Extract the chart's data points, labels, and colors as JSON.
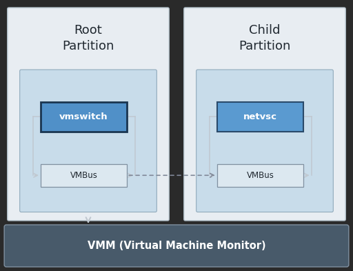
{
  "bg_color": "#2a2a2a",
  "partition_bg": "#e8edf2",
  "partition_border": "#b0bec8",
  "inner_box_bg": "#c8dcea",
  "inner_box_border": "#90aabb",
  "vmswitch_fill": "#5090c8",
  "vmswitch_border": "#1a3550",
  "netvsc_fill": "#5a9ad0",
  "netvsc_border": "#2a4a6a",
  "vmbus_fill": "#dce8f0",
  "vmbus_border": "#8090a0",
  "vmm_fill": "#485a6a",
  "vmm_border": "#8090a0",
  "arrow_color": "#c0c8d0",
  "dotted_color": "#808898",
  "text_dark": "#202830",
  "text_white": "#ffffff",
  "root_title": "Root\nPartition",
  "child_title": "Child\nPartition",
  "vmswitch_label": "vmswitch",
  "netvsc_label": "netvsc",
  "vmbus_label": "VMBus",
  "vmm_label": "VMM (Virtual Machine Monitor)",
  "figsize": [
    5.12,
    3.93
  ],
  "dpi": 100
}
